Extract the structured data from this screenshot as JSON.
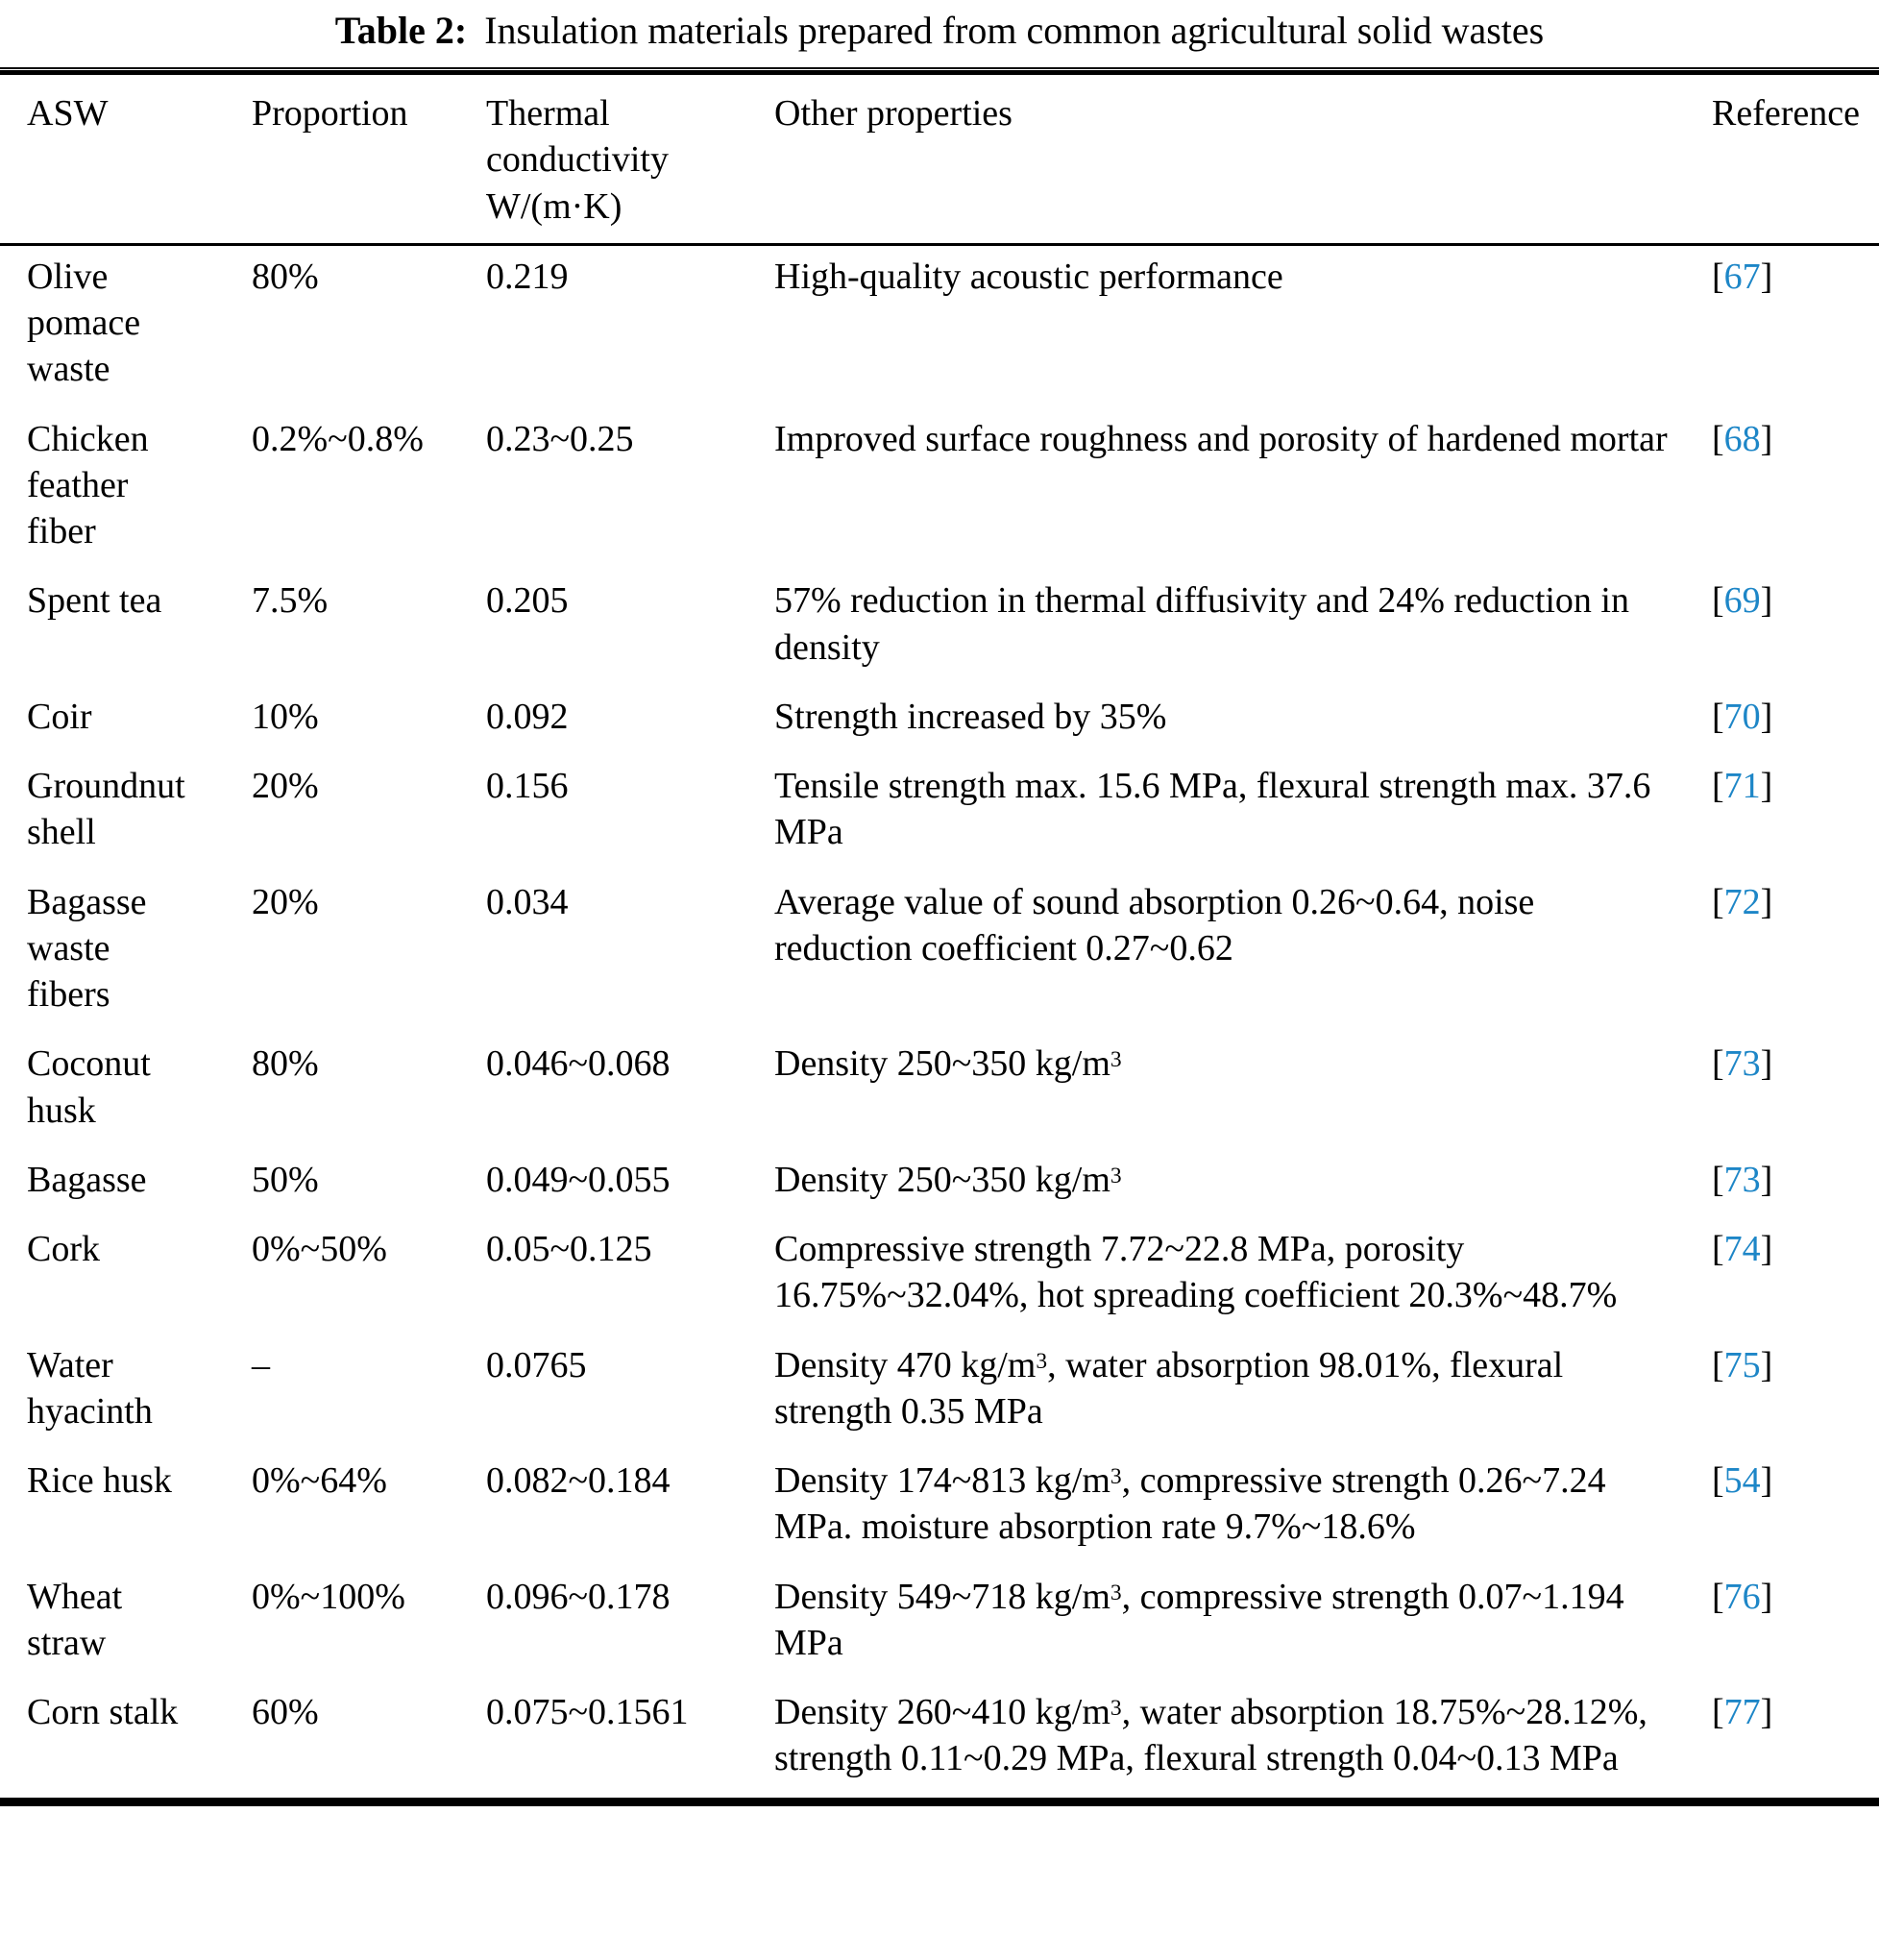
{
  "caption": {
    "label": "Table 2:",
    "text": "Insulation materials prepared from common agricultural solid wastes"
  },
  "colors": {
    "reference_link": "#1d86c7",
    "text": "#000000",
    "rule": "#000000"
  },
  "table": {
    "columns": [
      {
        "label": "ASW"
      },
      {
        "label": "Proportion"
      },
      {
        "label": "Thermal conductivity W/(m·K)"
      },
      {
        "label": "Other properties"
      },
      {
        "label": "Reference"
      }
    ],
    "rows": [
      {
        "asw": "Olive pomace waste",
        "proportion": "80%",
        "thermal_conductivity": "0.219",
        "other_properties": "High-quality acoustic performance",
        "reference": {
          "open": "[",
          "number": "67",
          "close": "]"
        }
      },
      {
        "asw": "Chicken feather fiber",
        "proportion": "0.2%~0.8%",
        "thermal_conductivity": "0.23~0.25",
        "other_properties": "Improved surface roughness and porosity of hardened mortar",
        "reference": {
          "open": "[",
          "number": "68",
          "close": "]"
        }
      },
      {
        "asw": "Spent tea",
        "proportion": "7.5%",
        "thermal_conductivity": "0.205",
        "other_properties": "57% reduction in thermal diffusivity and 24% reduction in density",
        "reference": {
          "open": "[",
          "number": "69",
          "close": "]"
        }
      },
      {
        "asw": "Coir",
        "proportion": "10%",
        "thermal_conductivity": "0.092",
        "other_properties": "Strength increased by 35%",
        "reference": {
          "open": "[",
          "number": "70",
          "close": "]"
        }
      },
      {
        "asw": "Groundnut shell",
        "proportion": "20%",
        "thermal_conductivity": "0.156",
        "other_properties": "Tensile strength max. 15.6 MPa, flexural strength max. 37.6 MPa",
        "reference": {
          "open": "[",
          "number": "71",
          "close": "]"
        }
      },
      {
        "asw": "Bagasse waste fibers",
        "proportion": "20%",
        "thermal_conductivity": "0.034",
        "other_properties": "Average value of sound absorption 0.26~0.64, noise reduction coefficient 0.27~0.62",
        "reference": {
          "open": "[",
          "number": "72",
          "close": "]"
        }
      },
      {
        "asw": "Coconut husk",
        "proportion": "80%",
        "thermal_conductivity": "0.046~0.068",
        "other_properties": "Density 250~350 kg/m³",
        "reference": {
          "open": "[",
          "number": "73",
          "close": "]"
        }
      },
      {
        "asw": "Bagasse",
        "proportion": "50%",
        "thermal_conductivity": "0.049~0.055",
        "other_properties": "Density 250~350 kg/m³",
        "reference": {
          "open": "[",
          "number": "73",
          "close": "]"
        }
      },
      {
        "asw": "Cork",
        "proportion": "0%~50%",
        "thermal_conductivity": "0.05~0.125",
        "other_properties": "Compressive strength 7.72~22.8 MPa, porosity 16.75%~32.04%, hot spreading coefficient 20.3%~48.7%",
        "reference": {
          "open": "[",
          "number": "74",
          "close": "]"
        }
      },
      {
        "asw": "Water hyacinth",
        "proportion": "–",
        "thermal_conductivity": "0.0765",
        "other_properties": "Density 470 kg/m³, water absorption 98.01%, flexural strength 0.35 MPa",
        "reference": {
          "open": "[",
          "number": "75",
          "close": "]"
        }
      },
      {
        "asw": "Rice husk",
        "proportion": "0%~64%",
        "thermal_conductivity": "0.082~0.184",
        "other_properties": "Density 174~813 kg/m³, compressive strength 0.26~7.24 MPa. moisture absorption rate 9.7%~18.6%",
        "reference": {
          "open": "[",
          "number": "54",
          "close": "]"
        }
      },
      {
        "asw": "Wheat straw",
        "proportion": "0%~100%",
        "thermal_conductivity": "0.096~0.178",
        "other_properties": "Density 549~718 kg/m³, compressive strength 0.07~1.194 MPa",
        "reference": {
          "open": "[",
          "number": "76",
          "close": "]"
        }
      },
      {
        "asw": "Corn stalk",
        "proportion": "60%",
        "thermal_conductivity": "0.075~0.1561",
        "other_properties": "Density 260~410 kg/m³, water absorption 18.75%~28.12%, strength 0.11~0.29 MPa, flexural strength 0.04~0.13 MPa",
        "reference": {
          "open": "[",
          "number": "77",
          "close": "]"
        }
      }
    ]
  }
}
